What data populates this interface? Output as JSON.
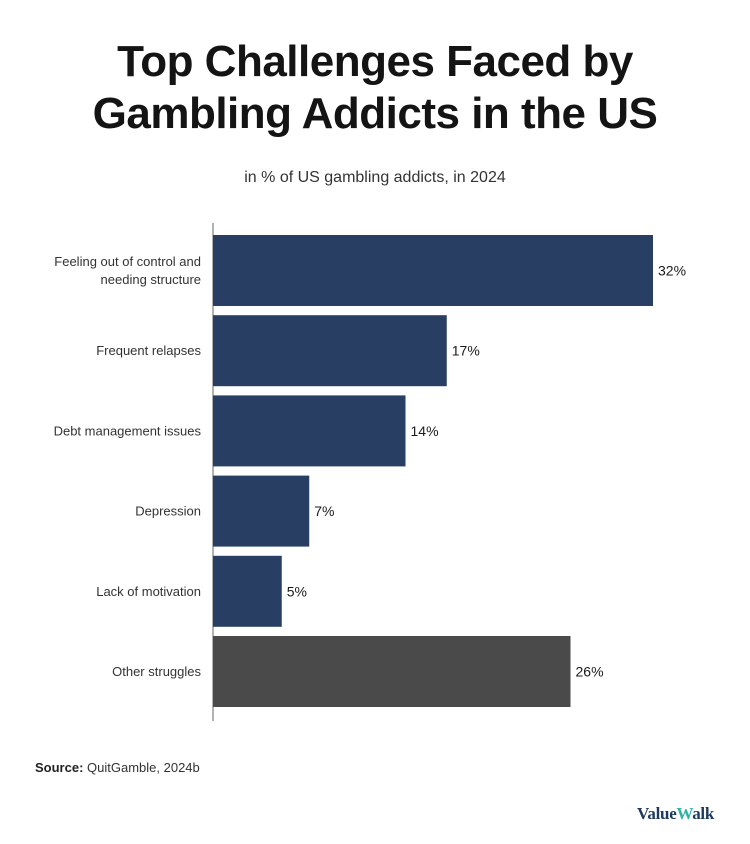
{
  "header": {
    "title_line1": "Top Challenges Faced by",
    "title_line2": "Gambling Addicts in the US",
    "subtitle": "in % of US gambling addicts, in 2024"
  },
  "chart_data": {
    "type": "bar",
    "orientation": "horizontal",
    "title": "Top Challenges Faced by Gambling Addicts in the US",
    "subtitle": "in % of US gambling addicts, in 2024",
    "xlabel": "",
    "ylabel": "",
    "categories": [
      "Feeling out of control and needing structure",
      "Frequent relapses",
      "Debt management issues",
      "Depression",
      "Lack of motivation",
      "Other struggles"
    ],
    "category_lines": [
      [
        "Feeling out of control and",
        "needing structure"
      ],
      [
        "Frequent relapses"
      ],
      [
        "Debt management issues"
      ],
      [
        "Depression"
      ],
      [
        "Lack of motivation"
      ],
      [
        "Other struggles"
      ]
    ],
    "values": [
      32,
      17,
      14,
      7,
      5,
      26
    ],
    "value_labels": [
      "32%",
      "17%",
      "14%",
      "7%",
      "5%",
      "26%"
    ],
    "xlim": [
      0,
      32
    ],
    "colors": [
      "#283e63",
      "#283e63",
      "#283e63",
      "#283e63",
      "#283e63",
      "#4a4a4a"
    ],
    "grid": false,
    "legend": "none"
  },
  "footer": {
    "source_label": "Source:",
    "source_text": "QuitGamble, 2024b",
    "logo_part1": "Value",
    "logo_part2": "W",
    "logo_part3": "alk"
  }
}
